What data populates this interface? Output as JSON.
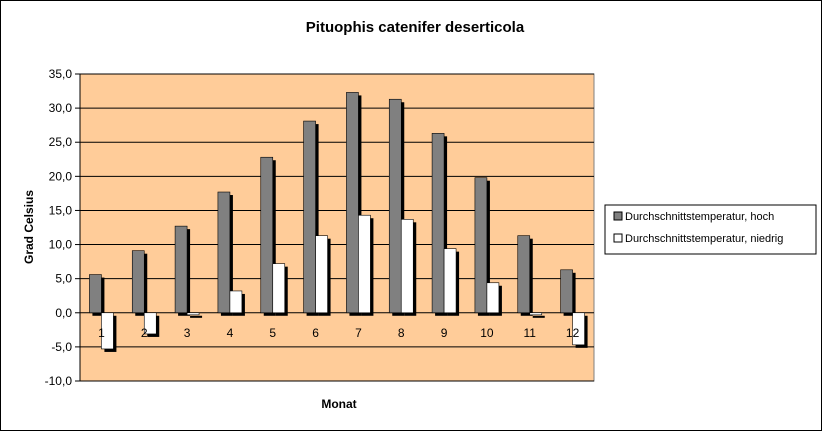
{
  "chart_data": {
    "type": "bar",
    "title": "Pituophis catenifer deserticola",
    "xlabel": "Monat",
    "ylabel": "Grad Celsius",
    "categories": [
      "1",
      "2",
      "3",
      "4",
      "5",
      "6",
      "7",
      "8",
      "9",
      "10",
      "11",
      "12"
    ],
    "ylim": [
      -10,
      35
    ],
    "ytick_step": 5,
    "ytick_labels": [
      "-10,0",
      "-5,0",
      "0,0",
      "5,0",
      "10,0",
      "15,0",
      "20,0",
      "25,0",
      "30,0",
      "35,0"
    ],
    "grid": true,
    "legend_position": "right",
    "plot_background": "#FFCC99",
    "series": [
      {
        "name": "Durchschnittstemperatur, hoch",
        "color": "#808080",
        "values": [
          5.6,
          9.1,
          12.7,
          17.7,
          22.8,
          28.1,
          32.3,
          31.3,
          26.3,
          19.8,
          11.3,
          6.3
        ]
      },
      {
        "name": "Durchschnittstemperatur, niedrig",
        "color": "#FFFFFF",
        "values": [
          -5.3,
          -3.1,
          -0.3,
          3.2,
          7.2,
          11.3,
          14.3,
          13.7,
          9.4,
          4.4,
          -0.3,
          -4.7
        ]
      }
    ]
  }
}
